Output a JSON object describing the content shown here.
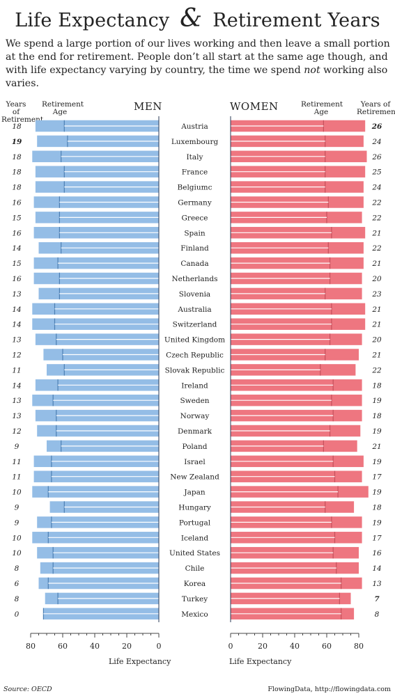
{
  "title": {
    "part1": "Life Expectancy",
    "amp": "&",
    "part2": "Retirement Years"
  },
  "subtitle": {
    "before": "We spend a large portion of our lives working and then leave a small portion at the end for retirement. People don’t all start at the same age though, and with life expectancy varying by country, the time we spend ",
    "emph": "not",
    "after": " working also varies."
  },
  "headers": {
    "years_left": "Years of Retirement",
    "age_left": "Retirement Age",
    "men": "MEN",
    "women": "WOMEN",
    "age_right": "Retirement Age",
    "years_right": "Years of Retirement"
  },
  "footer": {
    "source": "Source: OECD",
    "credit": "FlowingData, http://flowingdata.com"
  },
  "chart_data": {
    "type": "bar",
    "xlabel": "Life Expectancy",
    "xlim": [
      0,
      80
    ],
    "xticks": [
      80,
      60,
      40,
      20,
      0
    ],
    "colors": {
      "men": "#94bde6",
      "women": "#ee7680",
      "men_stripe": "#4c7fb3",
      "women_stripe": "#c5505b"
    },
    "categories": [
      "Austria",
      "Luxembourg",
      "Italy",
      "France",
      "Belgiumc",
      "Germany",
      "Greece",
      "Spain",
      "Finland",
      "Canada",
      "Netherlands",
      "Slovenia",
      "Australia",
      "Switzerland",
      "United Kingdom",
      "Czech Republic",
      "Slovak Republic",
      "Ireland",
      "Sweden",
      "Norway",
      "Denmark",
      "Poland",
      "Israel",
      "New Zealand",
      "Japan",
      "Hungary",
      "Portugal",
      "Iceland",
      "United States",
      "Chile",
      "Korea",
      "Turkey",
      "Mexico"
    ],
    "series": [
      {
        "name": "MEN",
        "retirement_years": [
          18,
          19,
          18,
          18,
          18,
          16,
          15,
          16,
          14,
          15,
          16,
          13,
          14,
          14,
          13,
          12,
          11,
          14,
          13,
          13,
          12,
          9,
          11,
          11,
          10,
          9,
          9,
          10,
          10,
          8,
          6,
          8,
          0
        ],
        "bold": [
          1
        ],
        "retirement_age": [
          59,
          57,
          61,
          59,
          59,
          62,
          62,
          62,
          61,
          63,
          62,
          62,
          65,
          65,
          64,
          60,
          59,
          63,
          66,
          64,
          64,
          61,
          67,
          67,
          69,
          59,
          67,
          69,
          66,
          66,
          69,
          63,
          72
        ],
        "life_expectancy": [
          77,
          76,
          79,
          77,
          77,
          78,
          77,
          78,
          75,
          78,
          78,
          75,
          79,
          79,
          77,
          72,
          70,
          77,
          79,
          77,
          76,
          70,
          78,
          78,
          79,
          68,
          76,
          79,
          76,
          74,
          75,
          71,
          72
        ]
      },
      {
        "name": "WOMEN",
        "retirement_years": [
          26,
          24,
          26,
          25,
          24,
          22,
          22,
          21,
          22,
          21,
          20,
          23,
          21,
          21,
          20,
          21,
          22,
          18,
          19,
          18,
          19,
          21,
          19,
          17,
          19,
          18,
          19,
          17,
          16,
          14,
          13,
          7,
          8
        ],
        "bold": [
          0,
          31
        ],
        "retirement_age": [
          58,
          59,
          59,
          59,
          59,
          61,
          60,
          63,
          61,
          62,
          62,
          59,
          63,
          63,
          62,
          59,
          56,
          64,
          63,
          64,
          62,
          58,
          64,
          65,
          67,
          59,
          63,
          65,
          64,
          66,
          69,
          68,
          69
        ],
        "life_expectancy": [
          84,
          83,
          85,
          84,
          83,
          83,
          82,
          84,
          83,
          83,
          82,
          82,
          84,
          84,
          82,
          80,
          78,
          82,
          82,
          82,
          81,
          79,
          83,
          82,
          86,
          77,
          82,
          82,
          80,
          80,
          82,
          75,
          77
        ]
      }
    ]
  }
}
